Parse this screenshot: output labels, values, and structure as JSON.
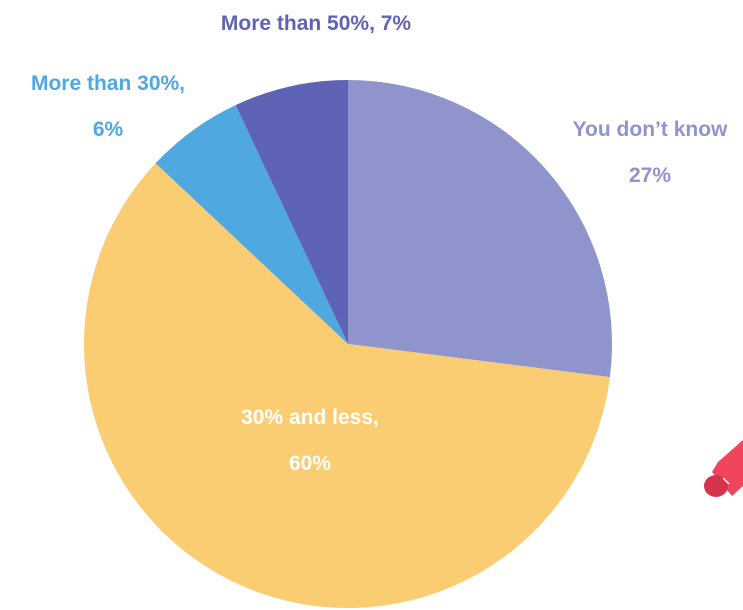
{
  "chart_data": {
    "type": "pie",
    "slices": [
      {
        "label_line1": "You don’t know",
        "label_line2": "27%",
        "value": 27,
        "color": "#9094cc",
        "label_color": "#9094cc"
      },
      {
        "label_line1": "30% and less,",
        "label_line2": "60%",
        "value": 60,
        "color": "#fbcd72",
        "label_color": "#ffffff"
      },
      {
        "label_line1": "More than 30%,",
        "label_line2": "6%",
        "value": 6,
        "color": "#4fa8df",
        "label_color": "#4fa8df"
      },
      {
        "label_line1": "More than 50%, 7%",
        "label_line2": "",
        "value": 7,
        "color": "#5f63b5",
        "label_color": "#5f63b5"
      }
    ],
    "start": "12 o'clock",
    "direction": "clockwise",
    "legend": "none",
    "decoration_color": "#f0455d"
  }
}
